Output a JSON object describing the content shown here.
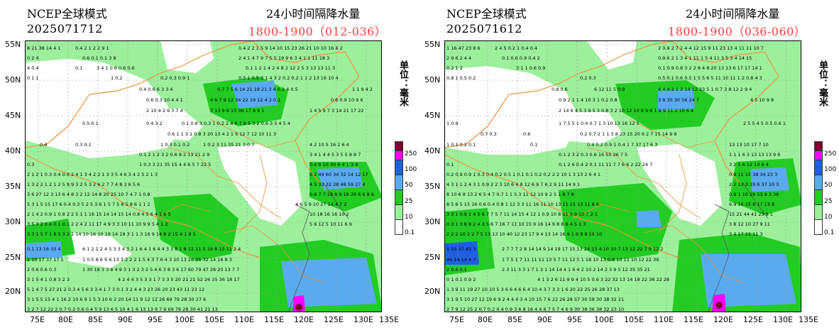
{
  "panels": [
    {
      "model": "NCEP全球模式",
      "init": "2025071712",
      "title": "24小时间隔降水量",
      "period": "1800-1900（012-036）"
    },
    {
      "model": "NCEP全球模式",
      "init": "2025071612",
      "title": "24小时间隔降水量",
      "period": "1800-1900（036-060）"
    }
  ],
  "unit_label": "单位：毫米",
  "lat_labels": [
    "55N",
    "50N",
    "45N",
    "40N",
    "35N",
    "30N",
    "25N",
    "20N"
  ],
  "lon_labels": [
    "75E",
    "80E",
    "85E",
    "90E",
    "95E",
    "100E",
    "105E",
    "110E",
    "115E",
    "120E",
    "125E",
    "130E",
    "135E"
  ],
  "legend": {
    "labels": [
      "250",
      "100",
      "50",
      "25",
      "10",
      "0.1"
    ],
    "colors": [
      "#7a0033",
      "#ff00ff",
      "#1f5fe0",
      "#5aaaf0",
      "#22cc22",
      "#9cf09c",
      "#ffffff"
    ]
  },
  "colors": {
    "light_green": "#9cf09c",
    "green": "#22cc22",
    "blue": "#5aaaf0",
    "dark_blue": "#1f5fe0",
    "magenta": "#ff00ff",
    "border": "#e8953a"
  }
}
